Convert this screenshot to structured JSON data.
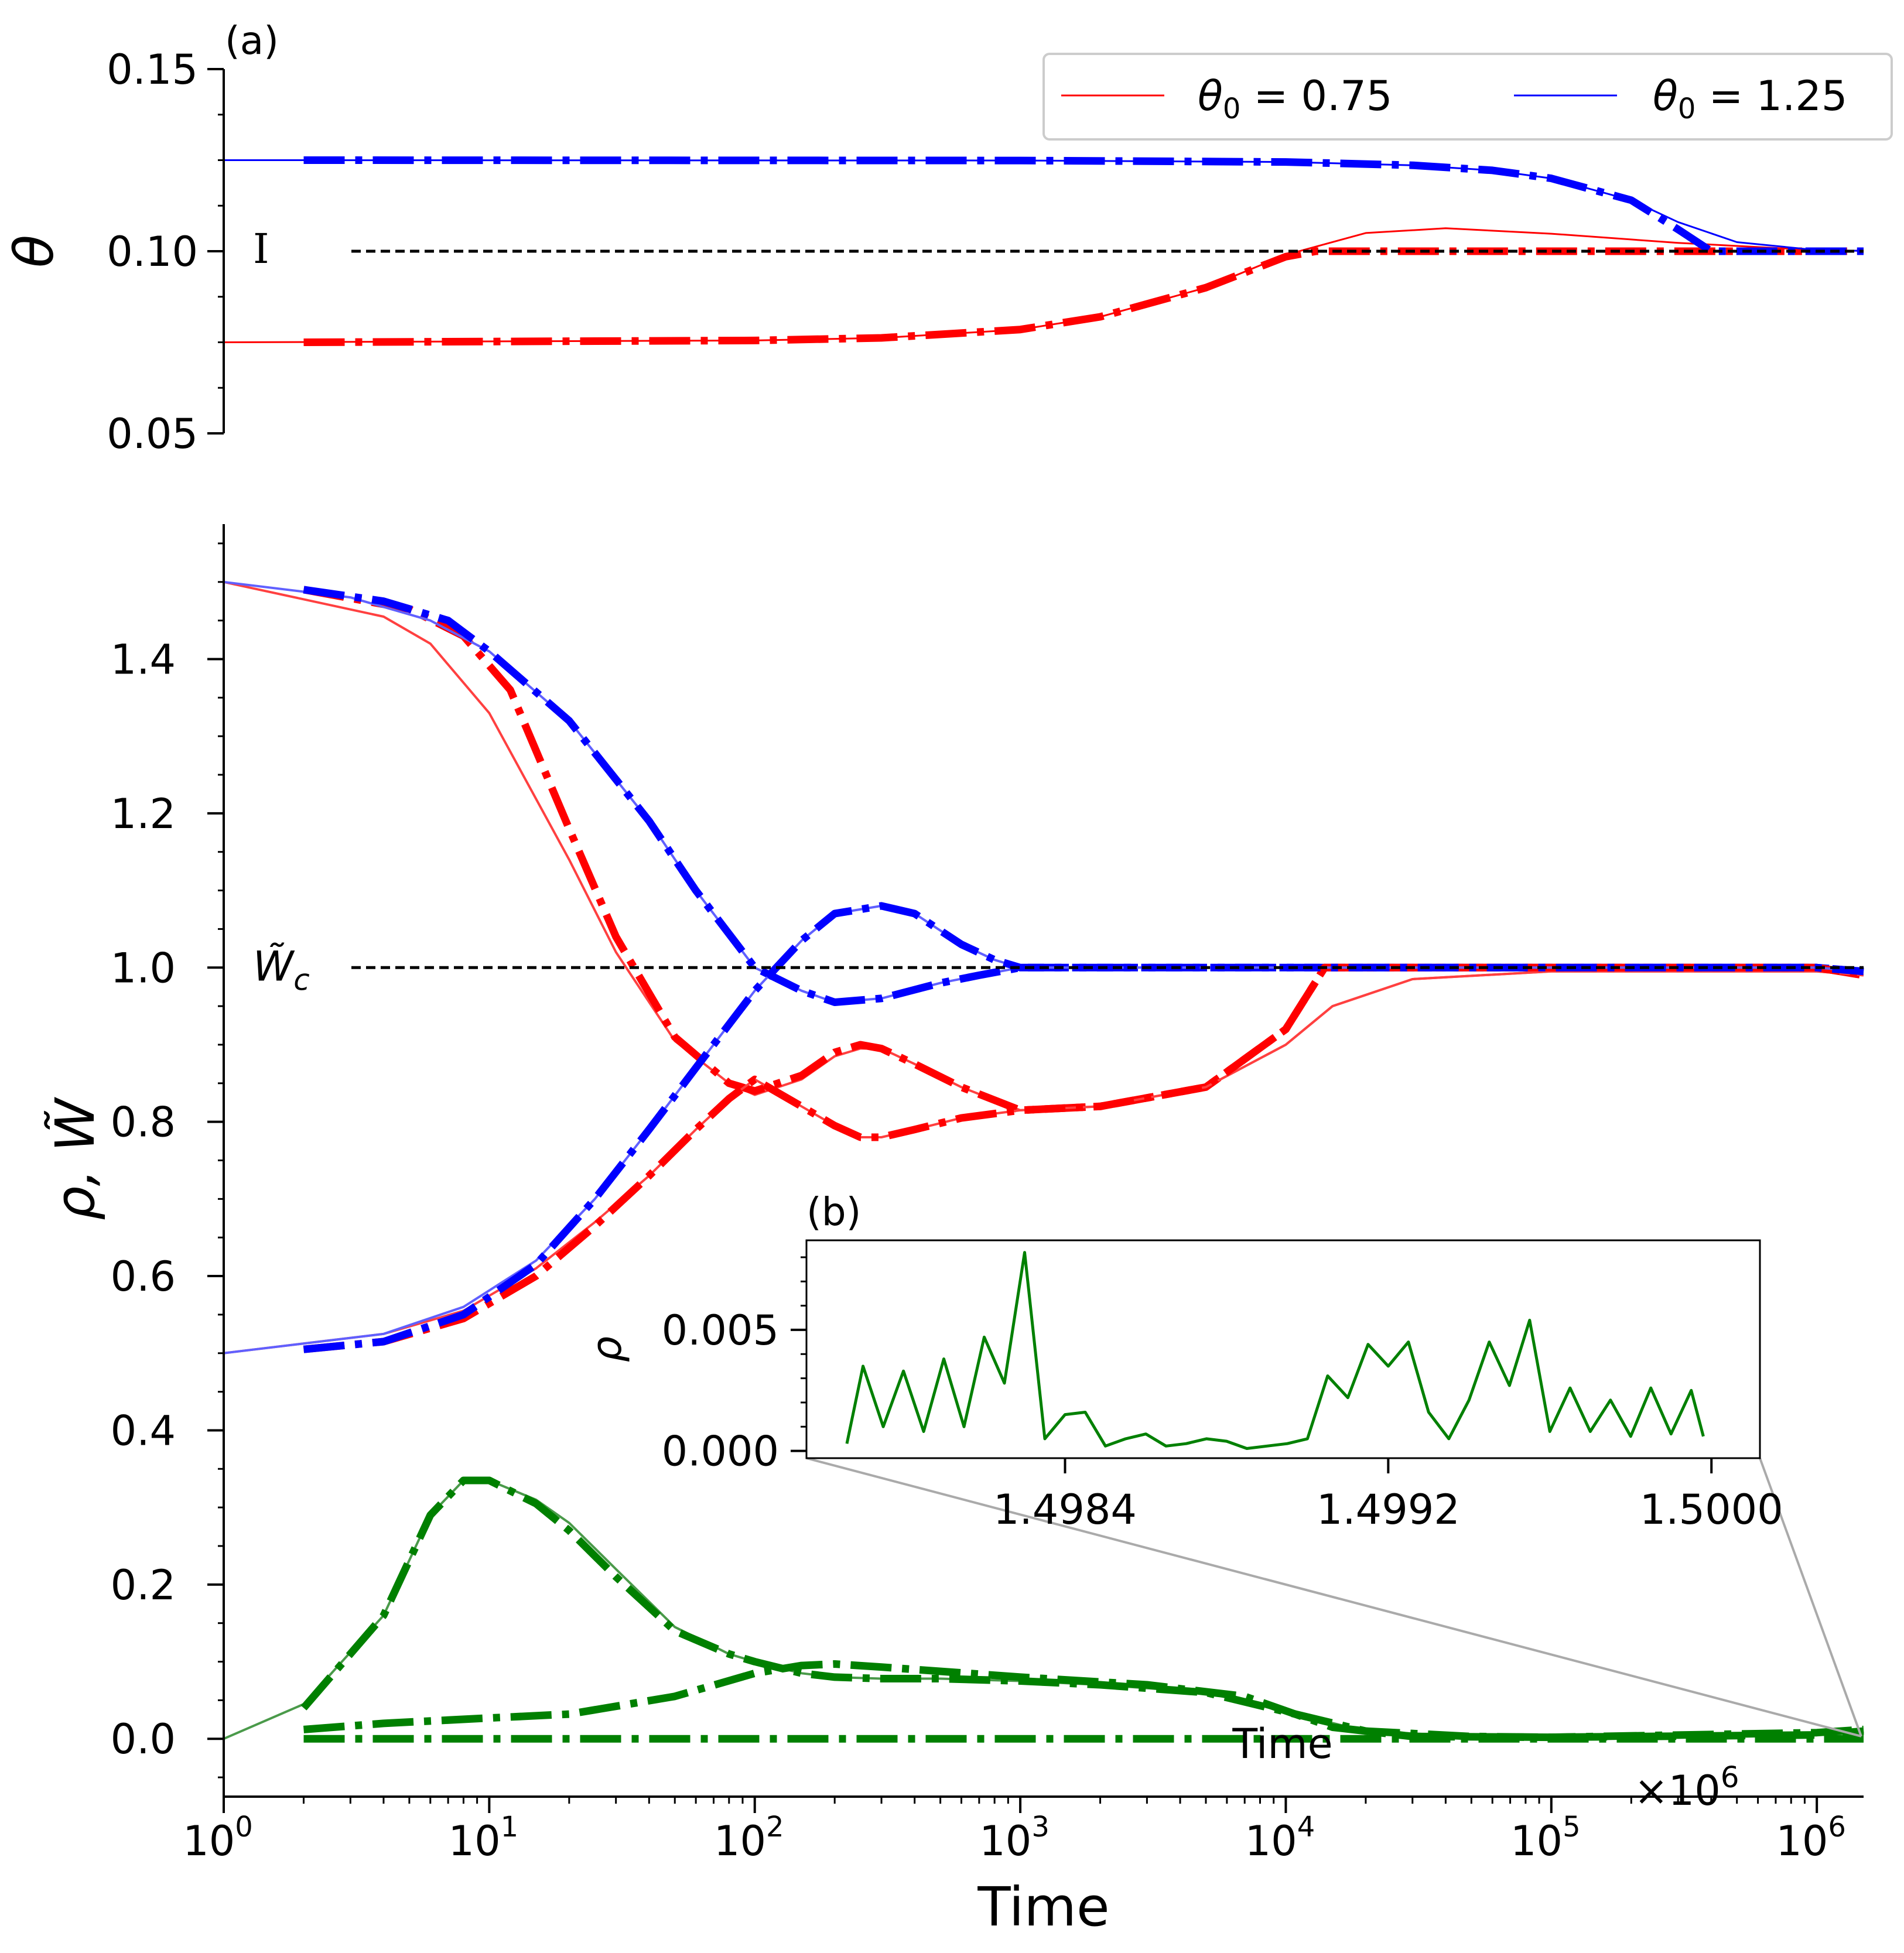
{
  "chart_data": [
    {
      "id": "panel-a",
      "panel_label": "(a)",
      "type": "line",
      "xscale": "log",
      "xlim": [
        1,
        1500000
      ],
      "ylabel": "θ",
      "ylim": [
        0.05,
        0.15
      ],
      "yticks": [
        0.05,
        0.1,
        0.15
      ],
      "ytick_labels": [
        "0.05",
        "0.10",
        "0.15"
      ],
      "reference_line": {
        "y": 0.1,
        "label": "I",
        "style": "dashed",
        "color": "#000000"
      },
      "legend": {
        "position": "top-right",
        "entries": [
          {
            "name": "θ0 = 0.75",
            "base": "θ",
            "sub": "0",
            "value": " = 0.75",
            "color": "#ff0000"
          },
          {
            "name": "θ0 = 1.25",
            "base": "θ",
            "sub": "0",
            "value": " = 1.25",
            "color": "#0000ff"
          }
        ]
      },
      "series": [
        {
          "name": "θ0=0.75 solid",
          "color": "#ff0000",
          "style": "solid",
          "x": [
            1,
            100,
            300,
            1000,
            2000,
            5000,
            10000,
            20000,
            40000,
            100000,
            300000,
            1000000,
            1500000
          ],
          "y": [
            0.075,
            0.0755,
            0.0762,
            0.0785,
            0.082,
            0.09,
            0.099,
            0.105,
            0.1063,
            0.1048,
            0.1023,
            0.1003,
            0.1001
          ]
        },
        {
          "name": "θ0=0.75 dash-dot",
          "color": "#ff0000",
          "style": "dashdot",
          "x": [
            2,
            100,
            300,
            1000,
            2000,
            5000,
            10000,
            13000,
            20000,
            100000,
            1000000,
            1300000
          ],
          "y": [
            0.075,
            0.0755,
            0.0762,
            0.0785,
            0.082,
            0.09,
            0.0985,
            0.1,
            0.1,
            0.1,
            0.1,
            0.1
          ]
        },
        {
          "name": "θ0=1.25 solid",
          "color": "#0000ff",
          "style": "solid",
          "x": [
            1,
            1000,
            10000,
            30000,
            60000,
            100000,
            200000,
            300000,
            500000,
            1000000,
            1500000
          ],
          "y": [
            0.125,
            0.1249,
            0.1245,
            0.1236,
            0.1222,
            0.12,
            0.114,
            0.108,
            0.1025,
            0.1003,
            0.1001
          ]
        },
        {
          "name": "θ0=1.25 dash-dot",
          "color": "#0000ff",
          "style": "dashdot",
          "x": [
            2,
            1000,
            10000,
            30000,
            60000,
            100000,
            200000,
            300000,
            400000,
            1000000,
            1500000
          ],
          "y": [
            0.125,
            0.1249,
            0.1245,
            0.1236,
            0.1222,
            0.12,
            0.114,
            0.106,
            0.1,
            0.1,
            0.1
          ]
        }
      ]
    },
    {
      "id": "main",
      "type": "line",
      "xscale": "log",
      "xlabel": "Time",
      "xlim": [
        1,
        1500000
      ],
      "xticks": [
        1,
        10,
        100,
        1000,
        10000,
        100000,
        1000000
      ],
      "xtick_labels": [
        {
          "base": "10",
          "exp": "0"
        },
        {
          "base": "10",
          "exp": "1"
        },
        {
          "base": "10",
          "exp": "2"
        },
        {
          "base": "10",
          "exp": "3"
        },
        {
          "base": "10",
          "exp": "4"
        },
        {
          "base": "10",
          "exp": "5"
        },
        {
          "base": "10",
          "exp": "6"
        }
      ],
      "ylabel": "ρ, W̃",
      "ylim": [
        -0.075,
        1.575
      ],
      "yticks": [
        0.0,
        0.2,
        0.4,
        0.6,
        0.8,
        1.0,
        1.2,
        1.4
      ],
      "ytick_labels": [
        "0.0",
        "0.2",
        "0.4",
        "0.6",
        "0.8",
        "1.0",
        "1.2",
        "1.4"
      ],
      "reference_line": {
        "y": 1.0,
        "label": "W̃c",
        "label_base": "W̃",
        "label_sub": "c",
        "style": "dashed",
        "color": "#000000"
      },
      "series": [
        {
          "name": "W down red solid",
          "color": "#ff4040",
          "style": "solid",
          "x": [
            1,
            4,
            6,
            10,
            20,
            30,
            50,
            80,
            100,
            150,
            200,
            250,
            300,
            400,
            600,
            1000,
            2000,
            5000,
            10000,
            15000,
            30000,
            100000,
            1000000,
            1500000
          ],
          "y": [
            1.5,
            1.455,
            1.42,
            1.33,
            1.14,
            1.02,
            0.905,
            0.85,
            0.835,
            0.855,
            0.885,
            0.895,
            0.895,
            0.875,
            0.845,
            0.815,
            0.82,
            0.845,
            0.9,
            0.95,
            0.985,
            0.995,
            0.995,
            0.99
          ]
        },
        {
          "name": "W down red dash-dot",
          "color": "#ff0000",
          "style": "dashdot",
          "x": [
            2,
            5,
            8,
            12,
            20,
            30,
            50,
            80,
            100,
            150,
            200,
            250,
            300,
            400,
            600,
            1000,
            2000,
            5000,
            10000,
            14000,
            20000,
            100000,
            1000000,
            1500000
          ],
          "y": [
            1.49,
            1.465,
            1.43,
            1.36,
            1.18,
            1.04,
            0.91,
            0.85,
            0.84,
            0.86,
            0.89,
            0.9,
            0.895,
            0.875,
            0.845,
            0.815,
            0.82,
            0.845,
            0.92,
            1.0,
            1.0,
            1.0,
            1.0,
            0.99
          ]
        },
        {
          "name": "W down blue solid",
          "color": "#6060ff",
          "style": "solid",
          "x": [
            1,
            3,
            6,
            10,
            20,
            40,
            60,
            100,
            150,
            200,
            300,
            500,
            700,
            1000,
            2000,
            10000,
            100000,
            1000000,
            1500000
          ],
          "y": [
            1.5,
            1.48,
            1.45,
            1.41,
            1.32,
            1.19,
            1.1,
            1.0,
            0.97,
            0.955,
            0.96,
            0.98,
            0.99,
            1.0,
            1.0,
            1.0,
            1.0,
            1.0,
            0.995
          ]
        },
        {
          "name": "W down blue dash-dot",
          "color": "#0000ff",
          "style": "dashdot",
          "x": [
            2,
            4,
            7,
            10,
            20,
            40,
            60,
            100,
            150,
            200,
            300,
            500,
            700,
            1000,
            2000,
            10000,
            100000,
            1000000,
            1500000
          ],
          "y": [
            1.49,
            1.475,
            1.45,
            1.41,
            1.32,
            1.19,
            1.1,
            1.0,
            0.97,
            0.955,
            0.96,
            0.98,
            0.99,
            1.0,
            1.0,
            1.0,
            1.0,
            1.0,
            0.995
          ]
        },
        {
          "name": "W up red solid",
          "color": "#ff4040",
          "style": "solid",
          "x": [
            1,
            4,
            8,
            15,
            25,
            40,
            60,
            80,
            100,
            150,
            200,
            250,
            300,
            400,
            600,
            1000,
            2000,
            5000,
            10000,
            15000,
            30000,
            100000,
            1000000,
            1500000
          ],
          "y": [
            0.5,
            0.525,
            0.555,
            0.61,
            0.67,
            0.73,
            0.79,
            0.83,
            0.855,
            0.82,
            0.795,
            0.78,
            0.78,
            0.79,
            0.805,
            0.815,
            0.82,
            0.845,
            0.9,
            0.95,
            0.985,
            0.995,
            0.995,
            0.99
          ]
        },
        {
          "name": "W up red dash-dot",
          "color": "#ff0000",
          "style": "dashdot",
          "x": [
            2,
            4,
            8,
            15,
            25,
            40,
            60,
            80,
            100,
            150,
            200,
            250,
            300,
            400,
            600,
            1000,
            2000,
            5000,
            10000,
            14000,
            20000,
            100000,
            1000000,
            1500000
          ],
          "y": [
            0.505,
            0.515,
            0.545,
            0.6,
            0.665,
            0.73,
            0.79,
            0.83,
            0.855,
            0.82,
            0.795,
            0.78,
            0.78,
            0.79,
            0.805,
            0.815,
            0.82,
            0.845,
            0.92,
            1.0,
            1.0,
            1.0,
            1.0,
            0.99
          ]
        },
        {
          "name": "W up blue solid",
          "color": "#6060ff",
          "style": "solid",
          "x": [
            1,
            4,
            8,
            15,
            25,
            40,
            60,
            100,
            150,
            200,
            300,
            400,
            600,
            800,
            1000,
            2000,
            10000,
            100000,
            1000000,
            1500000
          ],
          "y": [
            0.5,
            0.525,
            0.56,
            0.62,
            0.7,
            0.79,
            0.87,
            0.97,
            1.035,
            1.07,
            1.08,
            1.07,
            1.03,
            1.01,
            1.0,
            1.0,
            1.0,
            1.0,
            1.0,
            0.995
          ]
        },
        {
          "name": "W up blue dash-dot",
          "color": "#0000ff",
          "style": "dashdot",
          "x": [
            2,
            4,
            8,
            15,
            25,
            40,
            60,
            100,
            150,
            200,
            300,
            400,
            600,
            800,
            1000,
            2000,
            10000,
            100000,
            1000000,
            1500000
          ],
          "y": [
            0.505,
            0.515,
            0.55,
            0.615,
            0.7,
            0.79,
            0.87,
            0.97,
            1.035,
            1.07,
            1.08,
            1.07,
            1.03,
            1.01,
            1.0,
            1.0,
            1.0,
            1.0,
            1.0,
            0.995
          ]
        },
        {
          "name": "ρ peak solid",
          "color": "#4a9a4a",
          "style": "solid",
          "x": [
            1,
            2,
            4,
            6,
            8,
            10,
            15,
            20,
            30,
            50,
            80,
            100,
            150,
            200,
            300,
            500,
            1000,
            2000,
            5000,
            10000,
            20000,
            50000,
            100000,
            1000000,
            1500000
          ],
          "y": [
            0.0,
            0.045,
            0.16,
            0.29,
            0.335,
            0.335,
            0.31,
            0.28,
            0.22,
            0.145,
            0.11,
            0.1,
            0.085,
            0.08,
            0.078,
            0.078,
            0.075,
            0.07,
            0.06,
            0.035,
            0.01,
            0.003,
            0.002,
            0.005,
            0.01
          ]
        },
        {
          "name": "ρ peak dash-dot",
          "color": "#008000",
          "style": "dashdot",
          "x": [
            2,
            4,
            6,
            8,
            10,
            15,
            20,
            30,
            50,
            80,
            100,
            150,
            200,
            300,
            500,
            1000,
            2000,
            5000,
            10000,
            20000,
            50000,
            100000,
            1000000,
            1500000
          ],
          "y": [
            0.04,
            0.16,
            0.29,
            0.335,
            0.335,
            0.305,
            0.27,
            0.21,
            0.14,
            0.11,
            0.1,
            0.085,
            0.08,
            0.078,
            0.078,
            0.075,
            0.07,
            0.06,
            0.035,
            0.01,
            0.003,
            0.002,
            0.005,
            0.01
          ]
        },
        {
          "name": "ρ low dash-dot",
          "color": "#008000",
          "style": "dashdot",
          "x": [
            2,
            4,
            10,
            20,
            50,
            100,
            150,
            200,
            300,
            1000,
            3000,
            7000,
            15000,
            30000,
            100000,
            1000000,
            1500000
          ],
          "y": [
            0.012,
            0.02,
            0.027,
            0.032,
            0.055,
            0.085,
            0.095,
            0.097,
            0.093,
            0.08,
            0.07,
            0.055,
            0.015,
            0.003,
            0.002,
            0.008,
            0.012
          ]
        },
        {
          "name": "ρ zero dash-dot",
          "color": "#008000",
          "style": "dashdot",
          "x": [
            2,
            1500000
          ],
          "y": [
            0.0,
            0.0
          ]
        }
      ]
    },
    {
      "id": "inset-b",
      "panel_label": "(b)",
      "type": "line",
      "xlabel": "Time",
      "x_offset_label": "×10",
      "x_offset_exp": "6",
      "xlim": [
        1.49776,
        1.50012
      ],
      "xticks": [
        1.4984,
        1.4992,
        1.5
      ],
      "xtick_labels": [
        "1.4984",
        "1.4992",
        "1.5000"
      ],
      "ylabel": "ρ",
      "ylim": [
        -0.0003,
        0.0087
      ],
      "yticks": [
        0.0,
        0.005
      ],
      "ytick_labels": [
        "0.000",
        "0.005"
      ],
      "series": [
        {
          "name": "ρ steady state",
          "color": "#008000",
          "style": "solid",
          "x": [
            1.49786,
            1.4979,
            1.49795,
            1.498,
            1.49805,
            1.4981,
            1.49815,
            1.4982,
            1.49825,
            1.4983,
            1.49835,
            1.4984,
            1.49845,
            1.4985,
            1.49855,
            1.4986,
            1.49865,
            1.4987,
            1.49875,
            1.4988,
            1.49885,
            1.4989,
            1.49895,
            1.499,
            1.49905,
            1.4991,
            1.49915,
            1.4992,
            1.49925,
            1.4993,
            1.49935,
            1.4994,
            1.49945,
            1.4995,
            1.49955,
            1.4996,
            1.49965,
            1.4997,
            1.49975,
            1.4998,
            1.49985,
            1.4999,
            1.49995,
            1.49998
          ],
          "y": [
            0.0003,
            0.0035,
            0.001,
            0.0033,
            0.0008,
            0.0038,
            0.001,
            0.0047,
            0.0028,
            0.0082,
            0.0005,
            0.0015,
            0.0016,
            0.0002,
            0.0005,
            0.0007,
            0.0002,
            0.0003,
            0.0005,
            0.0004,
            0.0001,
            0.0002,
            0.0003,
            0.0005,
            0.0031,
            0.0022,
            0.0044,
            0.0035,
            0.0045,
            0.0016,
            0.0005,
            0.0021,
            0.0045,
            0.0027,
            0.0054,
            0.0008,
            0.0026,
            0.0008,
            0.0021,
            0.0006,
            0.0026,
            0.0007,
            0.0025,
            0.0006
          ]
        }
      ]
    }
  ]
}
